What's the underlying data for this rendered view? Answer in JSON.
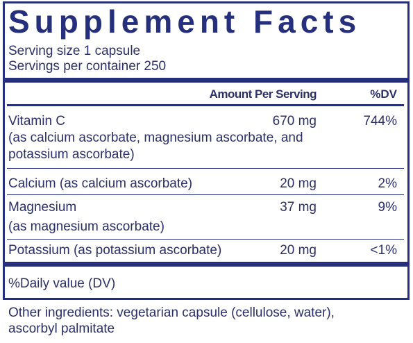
{
  "title": "Supplement Facts",
  "serving_size": "Serving size  1 capsule",
  "servings_per_container": "Servings per container  250",
  "header": {
    "amount": "Amount Per Serving",
    "dv": "%DV"
  },
  "rows": [
    {
      "name": "Vitamin C",
      "note_lines": [
        "(as calcium ascorbate, magnesium ascorbate, and",
        "potassium ascorbate)"
      ],
      "amount": "670 mg",
      "dv": "744%"
    },
    {
      "name": "Calcium (as calcium ascorbate)",
      "amount": "20 mg",
      "dv": "2%"
    },
    {
      "name": "Magnesium",
      "note_lines": [
        "(as magnesium ascorbate)"
      ],
      "amount": "37 mg",
      "dv": "9%"
    },
    {
      "name": "Potassium (as potassium ascorbate)",
      "amount": "20 mg",
      "dv": "<1%"
    }
  ],
  "footnote": "%Daily value (DV)",
  "other_ingredients": [
    "Other ingredients: vegetarian capsule (cellulose, water),",
    "ascorbyl palmitate"
  ]
}
